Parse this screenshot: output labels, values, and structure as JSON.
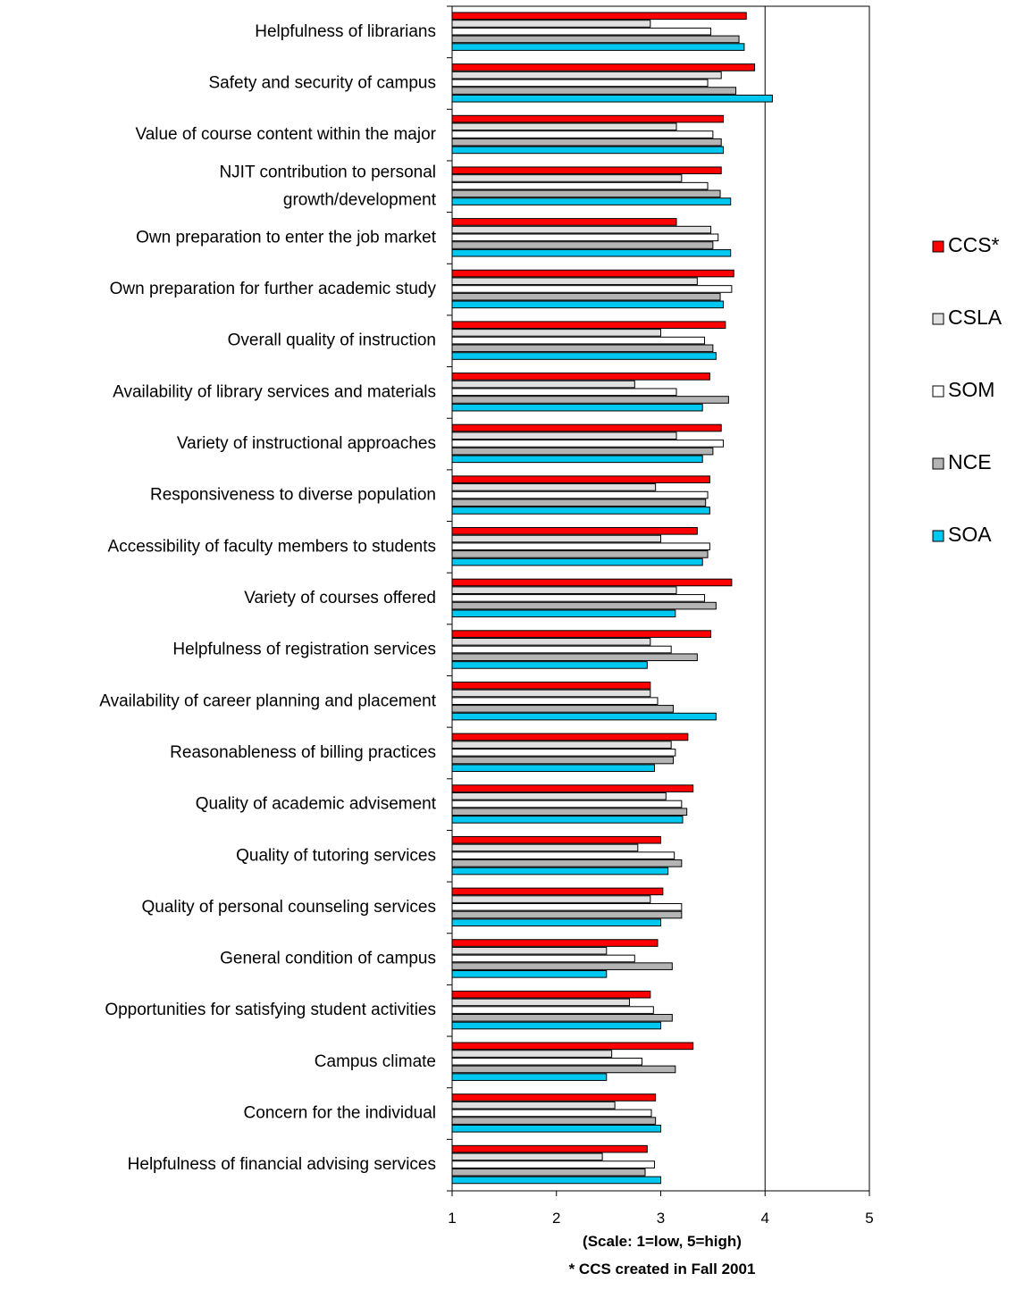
{
  "chart_data": {
    "type": "bar",
    "orientation": "horizontal",
    "categories": [
      [
        "Helpfulness of librarians"
      ],
      [
        "Safety and security of campus"
      ],
      [
        "Value of course content within the major"
      ],
      [
        "NJIT contribution to personal",
        "growth/development"
      ],
      [
        "Own preparation to enter the job market"
      ],
      [
        "Own preparation for further academic study"
      ],
      [
        "Overall quality of instruction"
      ],
      [
        "Availability of library services and materials"
      ],
      [
        "Variety of instructional approaches"
      ],
      [
        "Responsiveness to diverse population"
      ],
      [
        "Accessibility of faculty members to students"
      ],
      [
        "Variety of courses offered"
      ],
      [
        "Helpfulness of registration services"
      ],
      [
        "Availability of career planning and placement"
      ],
      [
        "Reasonableness of billing practices"
      ],
      [
        "Quality of academic advisement"
      ],
      [
        "Quality of tutoring services"
      ],
      [
        "Quality of personal counseling services"
      ],
      [
        "General condition of campus"
      ],
      [
        "Opportunities for satisfying student activities"
      ],
      [
        "Campus climate"
      ],
      [
        "Concern for the individual"
      ],
      [
        "Helpfulness of financial advising services"
      ]
    ],
    "series": [
      {
        "name": "CCS*",
        "color": "#ff0000",
        "values": [
          3.82,
          3.9,
          3.6,
          3.58,
          3.15,
          3.7,
          3.62,
          3.47,
          3.58,
          3.47,
          3.35,
          3.68,
          3.48,
          2.9,
          3.26,
          3.31,
          3.0,
          3.02,
          2.97,
          2.9,
          3.31,
          2.95,
          2.87
        ]
      },
      {
        "name": "CSLA",
        "color": "#e0e0e0",
        "values": [
          2.9,
          3.58,
          3.15,
          3.2,
          3.48,
          3.35,
          3.0,
          2.75,
          3.15,
          2.95,
          3.0,
          3.15,
          2.9,
          2.9,
          3.1,
          3.05,
          2.78,
          2.9,
          2.48,
          2.7,
          2.53,
          2.56,
          2.44
        ]
      },
      {
        "name": "SOM",
        "color": "#ffffff",
        "values": [
          3.48,
          3.45,
          3.5,
          3.45,
          3.55,
          3.68,
          3.42,
          3.15,
          3.6,
          3.45,
          3.47,
          3.42,
          3.1,
          2.97,
          3.14,
          3.2,
          3.13,
          3.2,
          2.75,
          2.93,
          2.82,
          2.91,
          2.94
        ]
      },
      {
        "name": "NCE",
        "color": "#b4b4b4",
        "values": [
          3.75,
          3.72,
          3.58,
          3.57,
          3.5,
          3.57,
          3.5,
          3.65,
          3.5,
          3.43,
          3.45,
          3.53,
          3.35,
          3.12,
          3.12,
          3.25,
          3.2,
          3.2,
          3.11,
          3.11,
          3.14,
          2.95,
          2.85
        ]
      },
      {
        "name": "SOA",
        "color": "#00c8f0",
        "values": [
          3.8,
          4.07,
          3.6,
          3.67,
          3.67,
          3.6,
          3.53,
          3.4,
          3.4,
          3.47,
          3.4,
          3.14,
          2.87,
          3.53,
          2.94,
          3.21,
          3.07,
          3.0,
          2.48,
          3.0,
          2.48,
          3.0,
          3.0
        ]
      }
    ],
    "xlim": [
      1,
      5
    ],
    "xticks": [
      1,
      2,
      3,
      4,
      5
    ],
    "gridlines": [
      4
    ],
    "xlabel": "(Scale:  1=low, 5=high)",
    "footnote": "* CCS created in Fall 2001",
    "legend_position": "right"
  }
}
